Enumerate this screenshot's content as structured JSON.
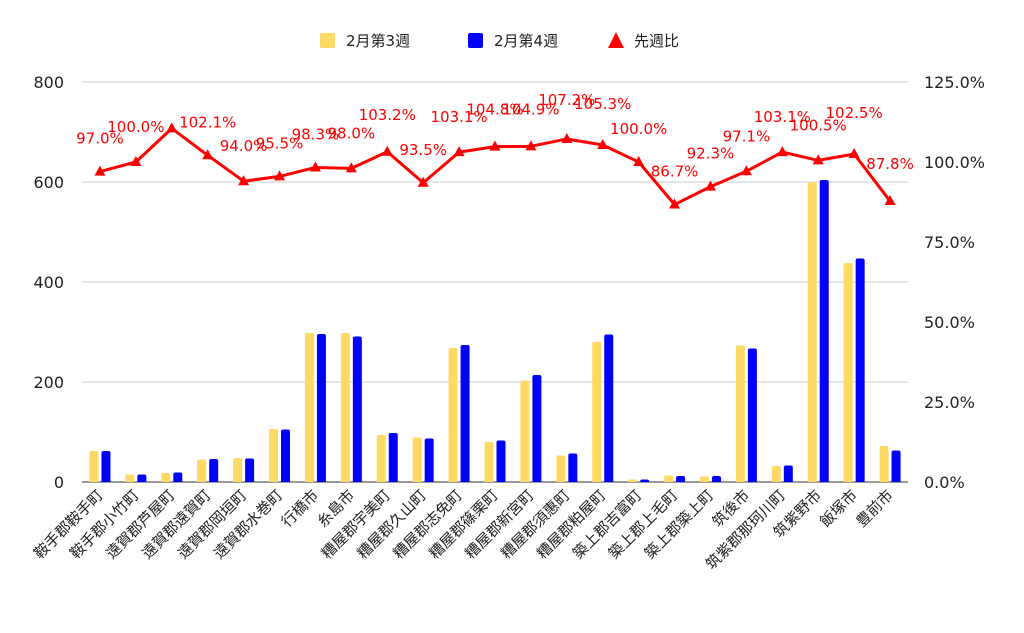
{
  "chart_data": {
    "type": "bar",
    "categories": [
      "鞍手郡鞍手町",
      "鞍手郡小竹町",
      "遠賀郡芦屋町",
      "遠賀郡遠賀町",
      "遠賀郡岡垣町",
      "遠賀郡水巻町",
      "行橋市",
      "糸島市",
      "糟屋郡宇美町",
      "糟屋郡久山町",
      "糟屋郡志免町",
      "糟屋郡篠栗町",
      "糟屋郡新宮町",
      "糟屋郡須惠町",
      "糟屋郡粕屋町",
      "築上郡吉富町",
      "築上郡上毛町",
      "築上郡築上町",
      "筑後市",
      "筑紫郡那珂川町",
      "筑紫野市",
      "飯塚市",
      "豊前市"
    ],
    "series": [
      {
        "name": "2月第3週",
        "axis": "left",
        "kind": "bar",
        "color": "#ffd966",
        "values": [
          62,
          15,
          18,
          45,
          48,
          106,
          298,
          298,
          94,
          89,
          268,
          80,
          203,
          53,
          280,
          5,
          13,
          11,
          273,
          32,
          600,
          438,
          72
        ]
      },
      {
        "name": "2月第4週",
        "axis": "left",
        "kind": "bar",
        "color": "#0000ff",
        "values": [
          62,
          15,
          19,
          46,
          47,
          105,
          296,
          291,
          98,
          87,
          274,
          83,
          214,
          57,
          295,
          5,
          12,
          12,
          267,
          33,
          604,
          447,
          63
        ]
      },
      {
        "name": "先週比",
        "axis": "right",
        "kind": "line",
        "color": "#ff0000",
        "values": [
          97.0,
          100.0,
          110.5,
          102.1,
          94.0,
          95.5,
          98.3,
          98.0,
          103.2,
          93.5,
          103.1,
          104.8,
          104.9,
          107.2,
          105.3,
          100.0,
          86.7,
          92.3,
          97.1,
          103.1,
          100.5,
          102.5,
          87.8
        ],
        "labels": [
          "97.0%",
          "100.0%",
          "",
          "102.1%",
          "94.0%",
          "95.5%",
          "98.3%",
          "98.0%",
          "103.2%",
          "93.5%",
          "103.1%",
          "104.8%",
          "104.9%",
          "107.2%",
          "105.3%",
          "100.0%",
          "86.7%",
          "92.3%",
          "97.1%",
          "103.1%",
          "100.5%",
          "102.5%",
          "87.8%"
        ]
      }
    ],
    "y_left": {
      "min": 0,
      "max": 800,
      "ticks": [
        "0",
        "200",
        "400",
        "600",
        "800"
      ]
    },
    "y_right": {
      "min": 0,
      "max": 125,
      "ticks": [
        "0.0%",
        "25.0%",
        "50.0%",
        "75.0%",
        "100.0%",
        "125.0%"
      ]
    },
    "grid": true,
    "legend_position": "top-center"
  }
}
